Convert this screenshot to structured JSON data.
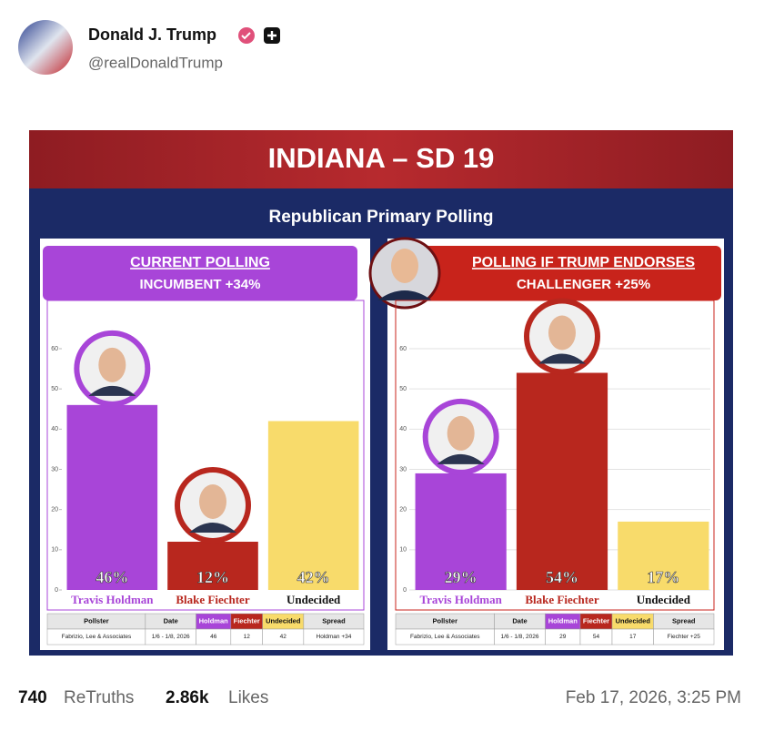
{
  "post": {
    "author": "Donald J. Trump",
    "handle": "@realDonaldTrump",
    "retruths_count": "740",
    "retruths_label": "ReTruths",
    "likes_count": "2.86k",
    "likes_label": "Likes",
    "timestamp": "Feb 17, 2026, 3:25 PM"
  },
  "graphic": {
    "title": "INDIANA – SD 19",
    "subtitle": "Republican Primary Polling"
  },
  "chart_data": [
    {
      "type": "bar",
      "title": "CURRENT POLLING",
      "subtitle": "INCUMBENT +34%",
      "header_color": "#a845d8",
      "categories": [
        "Travis Holdman",
        "Blake Fiechter",
        "Undecided"
      ],
      "values": [
        46,
        12,
        42
      ],
      "value_labels": [
        "46%",
        "12%",
        "42%"
      ],
      "colors": [
        "#a845d8",
        "#b8271e",
        "#f8db6b"
      ],
      "label_colors": [
        "#a845d8",
        "#b8271e",
        "#111111"
      ],
      "ylim": [
        0,
        72
      ],
      "yticks": [
        0,
        10,
        20,
        30,
        40,
        50,
        60
      ],
      "grid": false,
      "table": {
        "header": [
          "Pollster",
          "Date",
          "Holdman",
          "Fiechter",
          "Undecided",
          "Spread"
        ],
        "header_colors": [
          "#e6e6e6",
          "#e6e6e6",
          "#a845d8",
          "#b8271e",
          "#f8db6b",
          "#e6e6e6"
        ],
        "rows": [
          [
            "Fabrizio, Lee & Associates",
            "1/6 - 1/8, 2026",
            "46",
            "12",
            "42",
            "Holdman +34"
          ]
        ]
      }
    },
    {
      "type": "bar",
      "title": "POLLING IF TRUMP ENDORSES",
      "subtitle": "CHALLENGER +25%",
      "header_color": "#c8231b",
      "categories": [
        "Travis Holdman",
        "Blake Fiechter",
        "Undecided"
      ],
      "values": [
        29,
        54,
        17
      ],
      "value_labels": [
        "29%",
        "54%",
        "17%"
      ],
      "colors": [
        "#a845d8",
        "#b8271e",
        "#f8db6b"
      ],
      "label_colors": [
        "#a845d8",
        "#b8271e",
        "#111111"
      ],
      "ylim": [
        0,
        72
      ],
      "yticks": [
        0,
        10,
        20,
        30,
        40,
        50,
        60
      ],
      "grid": true,
      "table": {
        "header": [
          "Pollster",
          "Date",
          "Holdman",
          "Fiechter",
          "Undecided",
          "Spread"
        ],
        "header_colors": [
          "#e6e6e6",
          "#e6e6e6",
          "#a845d8",
          "#b8271e",
          "#f8db6b",
          "#e6e6e6"
        ],
        "rows": [
          [
            "Fabrizio, Lee & Associates",
            "1/6 - 1/8, 2026",
            "29",
            "54",
            "17",
            "Fiechter +25"
          ]
        ]
      }
    }
  ]
}
